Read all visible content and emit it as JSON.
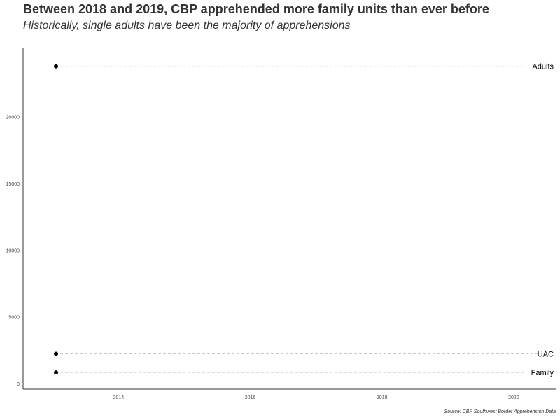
{
  "chart_data": {
    "type": "scatter",
    "title": "Between 2018 and 2019, CBP apprehended more family units than ever before",
    "subtitle": "Historically, single adults have been the majority of apprehensions",
    "caption": "Source: CBP Southwest Border Apprehension Data",
    "xlabel": "",
    "ylabel": "",
    "xlim": [
      2012.55,
      2020.65
    ],
    "ylim": [
      -400,
      25200
    ],
    "x_ticks": [
      2014,
      2016,
      2018,
      2020
    ],
    "y_ticks": [
      0,
      5000,
      10000,
      15000,
      20000
    ],
    "grid": false,
    "series": [
      {
        "name": "Adults",
        "points": [
          {
            "x": 2013.05,
            "y": 23800
          }
        ]
      },
      {
        "name": "UAC",
        "points": [
          {
            "x": 2013.05,
            "y": 2250
          }
        ]
      },
      {
        "name": "Family",
        "points": [
          {
            "x": 2013.05,
            "y": 850
          }
        ]
      }
    ]
  }
}
